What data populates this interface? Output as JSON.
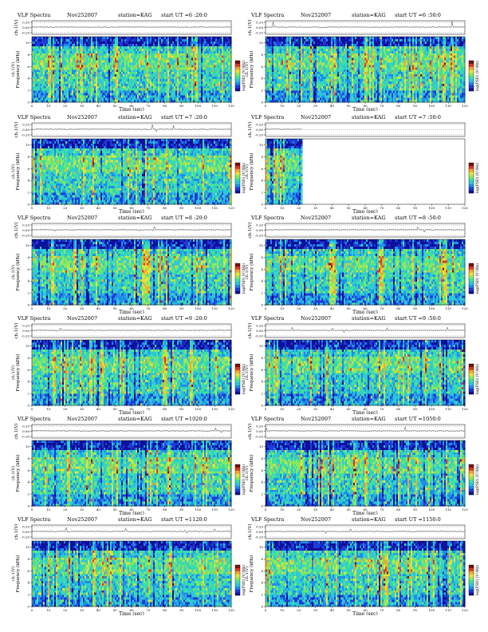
{
  "colors": {
    "spectrogram_scale": [
      "#10109a",
      "#1f3bd8",
      "#1f8ee8",
      "#2dc7d9",
      "#3fe0a0",
      "#8ee85a",
      "#e4e43a",
      "#f0a830",
      "#d83a20",
      "#7a1010"
    ],
    "background": "#ffffff"
  },
  "chart_data": [
    {
      "type": "heatmap",
      "title": "VLF Spectra",
      "date": "Nov252007",
      "station": "station=KAG",
      "start": "start  UT =6 :20:0",
      "ch_label": "ch.1(V)",
      "ch_ticks": [
        "0.20",
        "0.00",
        "-0.20"
      ],
      "ylabel": "Frequency (kHz)",
      "xlabel": "Time (sec)",
      "x_ticks": [
        0,
        10,
        20,
        30,
        40,
        50,
        60,
        70,
        80,
        90,
        100,
        110,
        120
      ],
      "y_ticks": [
        0,
        2,
        4,
        6,
        8,
        10
      ],
      "xlim": [
        0,
        120
      ],
      "ylim": [
        0,
        11
      ],
      "colorbar_label": "log(PSD) (V²/Hz)",
      "data_end_sec": 120
    },
    {
      "type": "heatmap",
      "title": "VLF Spectra",
      "date": "Nov252007",
      "station": "station=KAG",
      "start": "start  UT =6 :50:0",
      "ch_label": "ch.1(V)",
      "ch_ticks": [
        "0.20",
        "0.00",
        "-0.20"
      ],
      "ylabel": "Frequency (kHz)",
      "xlabel": "Time (sec)",
      "x_ticks": [
        0,
        10,
        20,
        30,
        40,
        50,
        60,
        70,
        80,
        90,
        100,
        110,
        120
      ],
      "y_ticks": [
        0,
        2,
        4,
        6,
        8,
        10
      ],
      "xlim": [
        0,
        120
      ],
      "ylim": [
        0,
        11
      ],
      "colorbar_label": "log(PSD) (V²/Hz)",
      "data_end_sec": 120
    },
    {
      "type": "heatmap",
      "title": "VLF Spectra",
      "date": "Nov252007",
      "station": "station=KAG",
      "start": "start  UT =7 :20:0",
      "ch_label": "ch.1(V)",
      "ch_ticks": [
        "0.20",
        "0.00",
        "-0.20"
      ],
      "ylabel": "Frequency (kHz)",
      "xlabel": "Time (sec)",
      "x_ticks": [
        0,
        10,
        20,
        30,
        40,
        50,
        60,
        70,
        80,
        90,
        100,
        110,
        120
      ],
      "y_ticks": [
        0,
        2,
        4,
        6,
        8,
        10
      ],
      "xlim": [
        0,
        120
      ],
      "ylim": [
        0,
        11
      ],
      "colorbar_label": "log(PSD) (V²/Hz)",
      "data_end_sec": 120
    },
    {
      "type": "heatmap",
      "title": "VLF Spectra",
      "date": "Nov252007",
      "station": "station=KAG",
      "start": "start  UT =7 :50:0",
      "ch_label": "ch.1(V)",
      "ch_ticks": [
        "0.20",
        "0.00",
        "-0.20"
      ],
      "ylabel": "Frequency (kHz)",
      "xlabel": "Time (sec)",
      "x_ticks": [
        0,
        10,
        20,
        30,
        40,
        50,
        60,
        70,
        80,
        90,
        100,
        110,
        120
      ],
      "y_ticks": [
        0,
        2,
        4,
        6,
        8,
        10
      ],
      "xlim": [
        0,
        120
      ],
      "ylim": [
        0,
        11
      ],
      "colorbar_label": "log(PSD) (V²/Hz)",
      "data_end_sec": 22
    },
    {
      "type": "heatmap",
      "title": "VLF Spectra",
      "date": "Nov252007",
      "station": "station=KAG",
      "start": "start  UT =8 :20:0",
      "ch_label": "ch.1(V)",
      "ch_ticks": [
        "0.20",
        "0.00",
        "-0.20"
      ],
      "ylabel": "Frequency (kHz)",
      "xlabel": "Time (sec)",
      "x_ticks": [
        0,
        10,
        20,
        30,
        40,
        50,
        60,
        70,
        80,
        90,
        100,
        110,
        120
      ],
      "y_ticks": [
        0,
        2,
        4,
        6,
        8,
        10
      ],
      "xlim": [
        0,
        120
      ],
      "ylim": [
        0,
        11
      ],
      "colorbar_label": "log(PSD) (V²/Hz)",
      "data_end_sec": 120
    },
    {
      "type": "heatmap",
      "title": "VLF Spectra",
      "date": "Nov252007",
      "station": "station=KAG",
      "start": "start  UT =8 :50:0",
      "ch_label": "ch.1(V)",
      "ch_ticks": [
        "0.20",
        "0.00",
        "-0.20"
      ],
      "ylabel": "Frequency (kHz)",
      "xlabel": "Time (sec)",
      "x_ticks": [
        0,
        10,
        20,
        30,
        40,
        50,
        60,
        70,
        80,
        90,
        100,
        110,
        120
      ],
      "y_ticks": [
        0,
        2,
        4,
        6,
        8,
        10
      ],
      "xlim": [
        0,
        120
      ],
      "ylim": [
        0,
        11
      ],
      "colorbar_label": "log(PSD) (V²/Hz)",
      "data_end_sec": 120
    },
    {
      "type": "heatmap",
      "title": "VLF Spectra",
      "date": "Nov252007",
      "station": "station=KAG",
      "start": "start  UT =9 :20:0",
      "ch_label": "ch.1(V)",
      "ch_ticks": [
        "0.20",
        "0.00",
        "-0.20"
      ],
      "ylabel": "Frequency (kHz)",
      "xlabel": "Time (sec)",
      "x_ticks": [
        0,
        10,
        20,
        30,
        40,
        50,
        60,
        70,
        80,
        90,
        100,
        110,
        120
      ],
      "y_ticks": [
        0,
        2,
        4,
        6,
        8,
        10
      ],
      "xlim": [
        0,
        120
      ],
      "ylim": [
        0,
        11
      ],
      "colorbar_label": "log(PSD) (V²/Hz)",
      "data_end_sec": 120
    },
    {
      "type": "heatmap",
      "title": "VLF Spectra",
      "date": "Nov252007",
      "station": "station=KAG",
      "start": "start  UT =9 :50:0",
      "ch_label": "ch.1(V)",
      "ch_ticks": [
        "0.20",
        "0.00",
        "-0.20"
      ],
      "ylabel": "Frequency (kHz)",
      "xlabel": "Time (sec)",
      "x_ticks": [
        0,
        10,
        20,
        30,
        40,
        50,
        60,
        70,
        80,
        90,
        100,
        110,
        120
      ],
      "y_ticks": [
        0,
        2,
        4,
        6,
        8,
        10
      ],
      "xlim": [
        0,
        120
      ],
      "ylim": [
        0,
        11
      ],
      "colorbar_label": "log(PSD) (V²/Hz)",
      "data_end_sec": 120
    },
    {
      "type": "heatmap",
      "title": "VLF Spectra",
      "date": "Nov252007",
      "station": "station=KAG",
      "start": "start  UT =1020:0",
      "ch_label": "ch.1(V)",
      "ch_ticks": [
        "0.20",
        "0.00",
        "-0.20"
      ],
      "ylabel": "Frequency (kHz)",
      "xlabel": "Time (sec)",
      "x_ticks": [
        0,
        10,
        20,
        30,
        40,
        50,
        60,
        70,
        80,
        90,
        100,
        110,
        120
      ],
      "y_ticks": [
        0,
        2,
        4,
        6,
        8,
        10
      ],
      "xlim": [
        0,
        120
      ],
      "ylim": [
        0,
        11
      ],
      "colorbar_label": "log(PSD) (V²/Hz)",
      "data_end_sec": 120
    },
    {
      "type": "heatmap",
      "title": "VLF Spectra",
      "date": "Nov252007",
      "station": "station=KAG",
      "start": "start  UT =1050:0",
      "ch_label": "ch.1(V)",
      "ch_ticks": [
        "0.20",
        "0.00",
        "-0.20"
      ],
      "ylabel": "Frequency (kHz)",
      "xlabel": "Time (sec)",
      "x_ticks": [
        0,
        10,
        20,
        30,
        40,
        50,
        60,
        70,
        80,
        90,
        100,
        110,
        120
      ],
      "y_ticks": [
        0,
        2,
        4,
        6,
        8,
        10
      ],
      "xlim": [
        0,
        120
      ],
      "ylim": [
        0,
        11
      ],
      "colorbar_label": "log(PSD) (V²/Hz)",
      "data_end_sec": 120
    },
    {
      "type": "heatmap",
      "title": "VLF Spectra",
      "date": "Nov252007",
      "station": "station=KAG",
      "start": "start  UT =1120:0",
      "ch_label": "ch.1(V)",
      "ch_ticks": [
        "0.20",
        "0.00",
        "-0.20"
      ],
      "ylabel": "Frequency (kHz)",
      "xlabel": "Time (sec)",
      "x_ticks": [
        0,
        10,
        20,
        30,
        40,
        50,
        60,
        70,
        80,
        90,
        100,
        110,
        120
      ],
      "y_ticks": [
        0,
        2,
        4,
        6,
        8,
        10
      ],
      "xlim": [
        0,
        120
      ],
      "ylim": [
        0,
        11
      ],
      "colorbar_label": "log(PSD) (V²/Hz)",
      "data_end_sec": 120
    },
    {
      "type": "heatmap",
      "title": "VLF Spectra",
      "date": "Nov252007",
      "station": "station=KAG",
      "start": "start  UT =1150:0",
      "ch_label": "ch.1(V)",
      "ch_ticks": [
        "0.20",
        "0.00",
        "-0.20"
      ],
      "ylabel": "Frequency (kHz)",
      "xlabel": "Time (sec)",
      "x_ticks": [
        0,
        10,
        20,
        30,
        40,
        50,
        60,
        70,
        80,
        90,
        100,
        110,
        120
      ],
      "y_ticks": [
        0,
        2,
        4,
        6,
        8,
        10
      ],
      "xlim": [
        0,
        120
      ],
      "ylim": [
        0,
        11
      ],
      "colorbar_label": "log(PSD) (V²/Hz)",
      "data_end_sec": 120
    }
  ]
}
